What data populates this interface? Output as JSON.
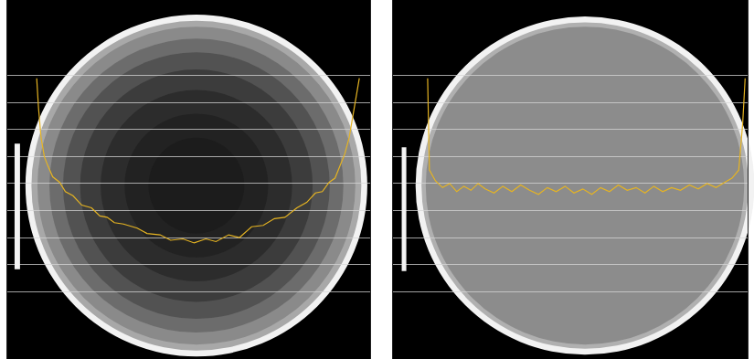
{
  "chart_data": [
    {
      "type": "line",
      "color": "#e6b422",
      "grid": true,
      "tick_labels": false,
      "xlim": [
        0,
        100
      ],
      "ylim": [
        -1.5,
        11.8
      ],
      "yticks": [
        1,
        2,
        3,
        4,
        5,
        6,
        7,
        8,
        9
      ],
      "x": [
        8.1,
        8.6,
        9.3,
        10.2,
        11.1,
        12.5,
        14.4,
        16.0,
        18.1,
        20.5,
        23.2,
        25.5,
        27.5,
        29.5,
        32.0,
        35.8,
        38.5,
        42.1,
        45.0,
        48.4,
        51.5,
        54.7,
        57.5,
        61.0,
        64.0,
        67.3,
        70.5,
        73.6,
        76.5,
        79.8,
        82.5,
        84.9,
        86.8,
        88.7,
        90.3,
        91.7,
        93.0,
        94.2,
        95.6,
        97.0
      ],
      "values": [
        8.9,
        7.8,
        6.7,
        6.0,
        5.68,
        5.25,
        5.05,
        4.7,
        4.55,
        4.2,
        4.1,
        3.8,
        3.75,
        3.55,
        3.5,
        3.35,
        3.15,
        3.1,
        2.9,
        2.95,
        2.8,
        2.95,
        2.85,
        3.1,
        3.0,
        3.4,
        3.45,
        3.7,
        3.75,
        4.1,
        4.3,
        4.65,
        4.7,
        5.05,
        5.2,
        5.7,
        6.1,
        6.7,
        7.8,
        8.9
      ]
    },
    {
      "type": "line",
      "color": "#e6b422",
      "grid": true,
      "tick_labels": false,
      "xlim": [
        0,
        100
      ],
      "ylim": [
        -1.5,
        11.8
      ],
      "yticks": [
        1,
        2,
        3,
        4,
        5,
        6,
        7,
        8,
        9
      ],
      "x": [
        9.8,
        10.0,
        10.3,
        12.0,
        14.0,
        16.0,
        18.0,
        20.0,
        22.0,
        24.0,
        26.0,
        28.5,
        31.0,
        33.5,
        36.0,
        38.5,
        41.0,
        43.5,
        46.0,
        48.5,
        51.0,
        53.5,
        56.0,
        58.5,
        61.0,
        63.5,
        66.0,
        68.5,
        71.0,
        73.5,
        76.0,
        78.5,
        81.0,
        83.5,
        86.0,
        88.5,
        91.0,
        93.5,
        95.5,
        97.4,
        98.5,
        99.2
      ],
      "values": [
        8.9,
        7.2,
        5.5,
        5.1,
        4.85,
        5.0,
        4.7,
        4.9,
        4.75,
        5.0,
        4.8,
        4.65,
        4.9,
        4.7,
        4.95,
        4.75,
        4.6,
        4.85,
        4.7,
        4.9,
        4.65,
        4.8,
        4.6,
        4.85,
        4.7,
        4.95,
        4.75,
        4.85,
        4.65,
        4.9,
        4.7,
        4.85,
        4.75,
        4.95,
        4.8,
        5.0,
        4.85,
        5.05,
        5.2,
        5.5,
        7.2,
        8.9
      ]
    }
  ]
}
